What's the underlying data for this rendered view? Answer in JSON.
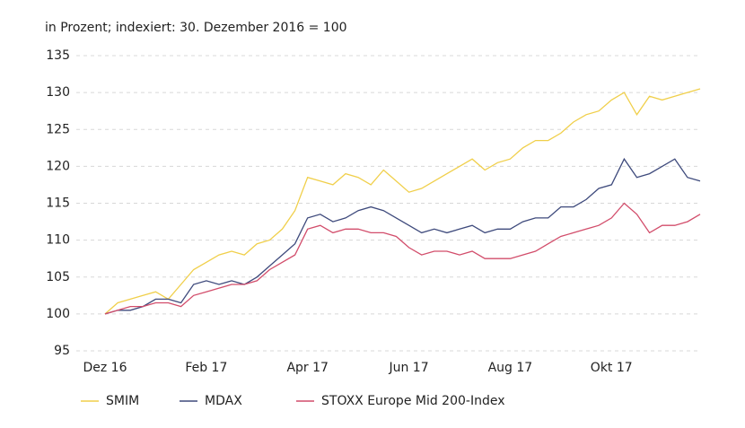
{
  "chart_data": {
    "type": "line",
    "subtitle": "in Prozent; indexiert: 30. Dezember 2016 = 100",
    "categories": [
      "Dez 16",
      null,
      null,
      null,
      null,
      null,
      null,
      null,
      "Feb 17",
      null,
      null,
      null,
      null,
      null,
      null,
      null,
      "Apr 17",
      null,
      null,
      null,
      null,
      null,
      null,
      null,
      "Jun 17",
      null,
      null,
      null,
      null,
      null,
      null,
      null,
      "Aug 17",
      null,
      null,
      null,
      null,
      null,
      null,
      null,
      "Okt 17",
      null,
      null,
      null,
      null,
      null,
      null,
      null
    ],
    "series": [
      {
        "name": "SMIM",
        "color": "#f0cf4a",
        "values": [
          100,
          101.5,
          102,
          102.5,
          103,
          102,
          104,
          106,
          107,
          108,
          108.5,
          108,
          109.5,
          110,
          111.5,
          114,
          118.5,
          118,
          117.5,
          119,
          118.5,
          117.5,
          119.5,
          118,
          116.5,
          117,
          118,
          119,
          120,
          121,
          119.5,
          120.5,
          121,
          122.5,
          123.5,
          123.5,
          124.5,
          126,
          127,
          127.5,
          129,
          130,
          127,
          129.5,
          129,
          129.5,
          130,
          130.5
        ]
      },
      {
        "name": "MDAX",
        "color": "#3e4a7c",
        "values": [
          100,
          100.5,
          100.5,
          101,
          102,
          102,
          101.5,
          104,
          104.5,
          104,
          104.5,
          104,
          105,
          106.5,
          108,
          109.5,
          113,
          113.5,
          112.5,
          113,
          114,
          114.5,
          114,
          113,
          112,
          111,
          111.5,
          111,
          111.5,
          112,
          111,
          111.5,
          111.5,
          112.5,
          113,
          113,
          114.5,
          114.5,
          115.5,
          117,
          117.5,
          121,
          118.5,
          119,
          120,
          121,
          118.5,
          118
        ]
      },
      {
        "name": "STOXX Europe Mid 200-Index",
        "color": "#d24d6b",
        "values": [
          100,
          100.5,
          101,
          101,
          101.5,
          101.5,
          101,
          102.5,
          103,
          103.5,
          104,
          104,
          104.5,
          106,
          107,
          108,
          111.5,
          112,
          111,
          111.5,
          111.5,
          111,
          111,
          110.5,
          109,
          108,
          108.5,
          108.5,
          108,
          108.5,
          107.5,
          107.5,
          107.5,
          108,
          108.5,
          109.5,
          110.5,
          111,
          111.5,
          112,
          113,
          115,
          113.5,
          111,
          112,
          112,
          112.5,
          113.5
        ]
      }
    ],
    "ylim": [
      95,
      135
    ],
    "yticks": [
      95,
      100,
      105,
      110,
      115,
      120,
      125,
      130,
      135
    ],
    "grid": true
  }
}
